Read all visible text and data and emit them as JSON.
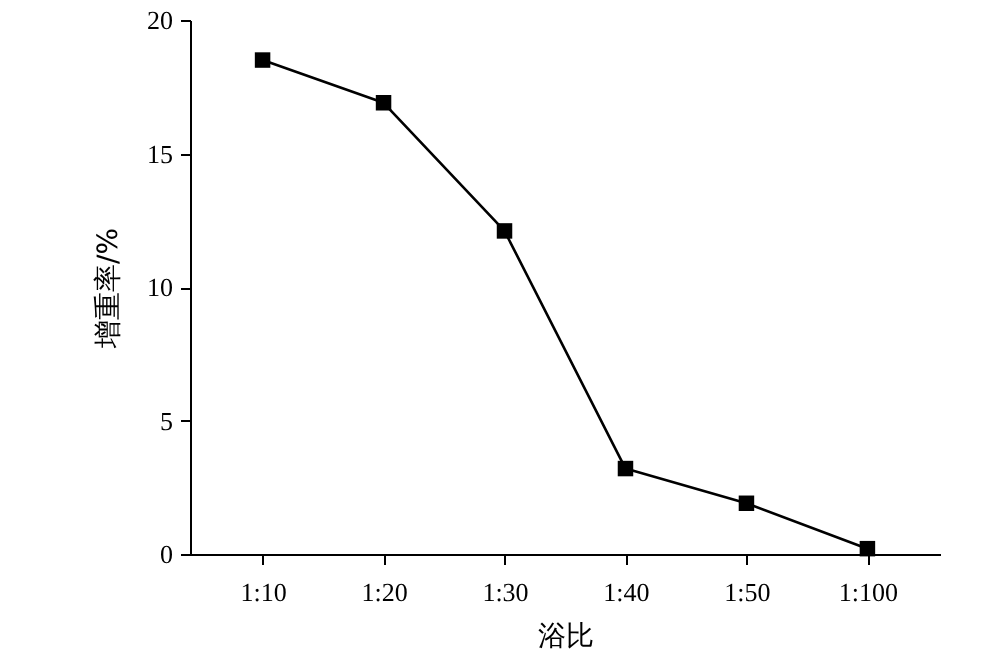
{
  "chart_data": {
    "type": "line",
    "xlabel": "浴比",
    "ylabel": "增重率/%",
    "categories": [
      "1:10",
      "1:20",
      "1:30",
      "1:40",
      "1:50",
      "1:100"
    ],
    "series": [
      {
        "color": "#000000",
        "values": [
          18.5,
          16.9,
          12.1,
          3.2,
          1.9,
          0.2
        ]
      }
    ],
    "ylim": [
      0,
      20
    ],
    "yticks": [
      0,
      5,
      10,
      15,
      20
    ],
    "marker": "square",
    "line_style": "solid",
    "grid": false
  }
}
